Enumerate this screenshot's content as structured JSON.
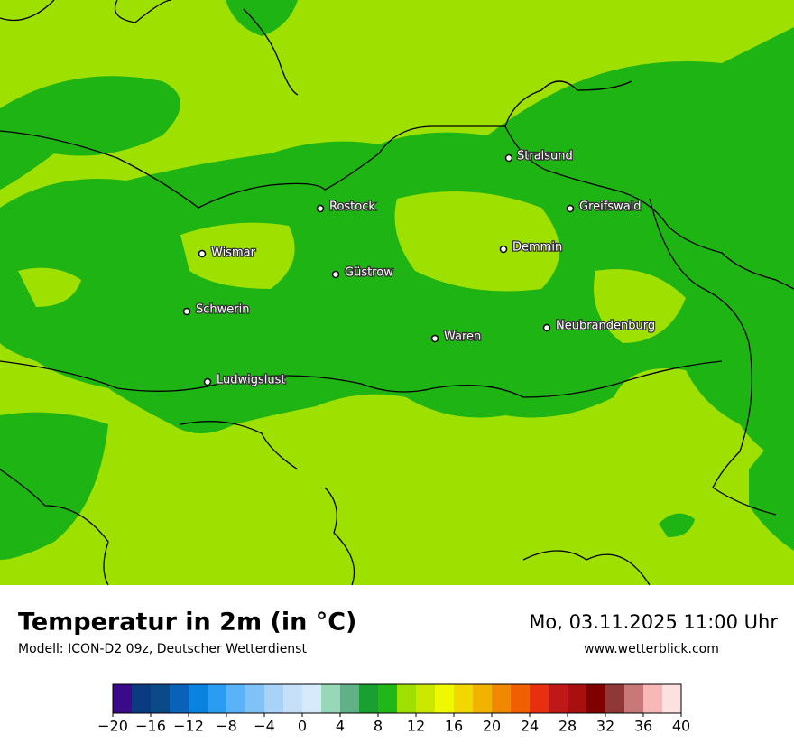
{
  "header": {
    "title": "Temperatur in 2m (in °C)",
    "subtitle": "Modell: ICON-D2 09z, Deutscher Wetterdienst",
    "datetime": "Mo, 03.11.2025 11:00 Uhr",
    "website": "www.wetterblick.com"
  },
  "cities": [
    "Stralsund",
    "Rostock",
    "Greifswald",
    "Wismar",
    "Demmin",
    "Güstrow",
    "Schwerin",
    "Neubrandenburg",
    "Waren",
    "Ludwigslust"
  ],
  "colorbar": {
    "range": [
      -20,
      40
    ],
    "colors": [
      "#3a0a8a",
      "#0a3a80",
      "#0a4a88",
      "#0a62b8",
      "#0a82e0",
      "#2a9cf2",
      "#5ab2f8",
      "#80c2f8",
      "#a8d2f8",
      "#c6e0fa",
      "#d6eafc",
      "#96d8b8",
      "#60b088",
      "#18a030",
      "#20b818",
      "#a0e000",
      "#cce800",
      "#f0f800",
      "#f0d800",
      "#f0b400",
      "#f08800",
      "#f06000",
      "#e83010",
      "#c01818",
      "#a81010",
      "#800000",
      "#903838",
      "#c87878",
      "#f8b8b8",
      "#fde0e0"
    ],
    "ticks": [
      {
        "value": -20,
        "label": "−20"
      },
      {
        "value": -16,
        "label": "−16"
      },
      {
        "value": -12,
        "label": "−12"
      },
      {
        "value": -8,
        "label": "−8"
      },
      {
        "value": -4,
        "label": "−4"
      },
      0,
      4,
      8,
      12,
      16,
      20,
      24,
      28,
      32,
      36,
      40
    ]
  }
}
